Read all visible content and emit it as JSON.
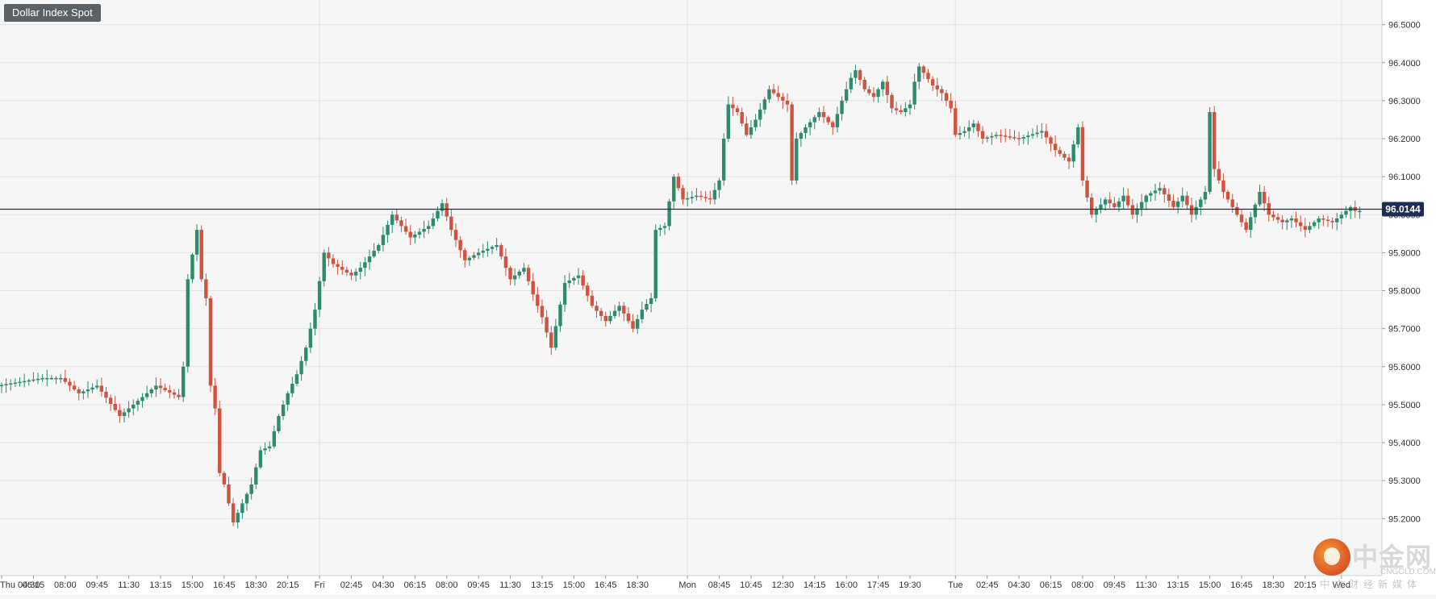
{
  "header": {
    "title": "Dollar Index Spot"
  },
  "chart_data": {
    "type": "candlestick",
    "title": "Dollar Index Spot",
    "colors": {
      "up": "#2e8b6e",
      "down": "#d0533f",
      "grid": "#e3e3e3",
      "price_line": "#1e2c55",
      "axis_text": "#333333"
    },
    "ylim": [
      95.05,
      96.565
    ],
    "y_ticks": [
      "95.2000",
      "95.3000",
      "95.4000",
      "95.5000",
      "95.6000",
      "95.7000",
      "95.8000",
      "95.9000",
      "96.0000",
      "96.1000",
      "96.2000",
      "96.3000",
      "96.4000",
      "96.5000"
    ],
    "x_ticks": [
      {
        "bar": 0,
        "label": "Thu 04:30"
      },
      {
        "bar": 7,
        "label": "06:15"
      },
      {
        "bar": 14,
        "label": "08:00"
      },
      {
        "bar": 21,
        "label": "09:45"
      },
      {
        "bar": 28,
        "label": "11:30"
      },
      {
        "bar": 35,
        "label": "13:15"
      },
      {
        "bar": 42,
        "label": "15:00"
      },
      {
        "bar": 49,
        "label": "16:45"
      },
      {
        "bar": 56,
        "label": "18:30"
      },
      {
        "bar": 63,
        "label": "20:15"
      },
      {
        "bar": 70,
        "label": "Fri"
      },
      {
        "bar": 77,
        "label": "02:45"
      },
      {
        "bar": 84,
        "label": "04:30"
      },
      {
        "bar": 91,
        "label": "06:15"
      },
      {
        "bar": 98,
        "label": "08:00"
      },
      {
        "bar": 105,
        "label": "09:45"
      },
      {
        "bar": 112,
        "label": "11:30"
      },
      {
        "bar": 119,
        "label": "13:15"
      },
      {
        "bar": 126,
        "label": "15:00"
      },
      {
        "bar": 133,
        "label": "16:45"
      },
      {
        "bar": 140,
        "label": "18:30"
      },
      {
        "bar": 151,
        "label": "Mon"
      },
      {
        "bar": 158,
        "label": "08:45"
      },
      {
        "bar": 165,
        "label": "10:45"
      },
      {
        "bar": 172,
        "label": "12:30"
      },
      {
        "bar": 179,
        "label": "14:15"
      },
      {
        "bar": 186,
        "label": "16:00"
      },
      {
        "bar": 193,
        "label": "17:45"
      },
      {
        "bar": 200,
        "label": "19:30"
      },
      {
        "bar": 210,
        "label": "Tue"
      },
      {
        "bar": 217,
        "label": "02:45"
      },
      {
        "bar": 224,
        "label": "04:30"
      },
      {
        "bar": 231,
        "label": "06:15"
      },
      {
        "bar": 238,
        "label": "08:00"
      },
      {
        "bar": 245,
        "label": "09:45"
      },
      {
        "bar": 252,
        "label": "11:30"
      },
      {
        "bar": 259,
        "label": "13:15"
      },
      {
        "bar": 266,
        "label": "15:00"
      },
      {
        "bar": 273,
        "label": "16:45"
      },
      {
        "bar": 280,
        "label": "18:30"
      },
      {
        "bar": 287,
        "label": "20:15"
      },
      {
        "bar": 295,
        "label": "Wed"
      }
    ],
    "day_separator_bars": [
      70,
      151,
      210,
      295
    ],
    "current_price": "96.0144",
    "segments": [
      [
        0,
        95.55
      ],
      [
        10,
        95.57
      ],
      [
        14,
        95.57
      ],
      [
        18,
        95.53
      ],
      [
        22,
        95.55
      ],
      [
        27,
        95.47
      ],
      [
        30,
        95.5
      ],
      [
        35,
        95.55
      ],
      [
        40,
        95.52
      ],
      [
        41,
        95.6
      ],
      [
        42,
        95.83
      ],
      [
        44,
        95.96
      ],
      [
        45,
        95.83
      ],
      [
        46,
        95.78
      ],
      [
        47,
        95.55
      ],
      [
        48,
        95.49
      ],
      [
        49,
        95.32
      ],
      [
        50,
        95.29
      ],
      [
        52,
        95.19
      ],
      [
        54,
        95.24
      ],
      [
        56,
        95.29
      ],
      [
        58,
        95.38
      ],
      [
        60,
        95.39
      ],
      [
        62,
        95.47
      ],
      [
        64,
        95.53
      ],
      [
        66,
        95.58
      ],
      [
        68,
        95.65
      ],
      [
        70,
        95.75
      ],
      [
        72,
        95.9
      ],
      [
        74,
        95.87
      ],
      [
        78,
        95.84
      ],
      [
        80,
        95.86
      ],
      [
        84,
        95.92
      ],
      [
        87,
        96.0
      ],
      [
        91,
        95.94
      ],
      [
        95,
        95.97
      ],
      [
        98,
        96.03
      ],
      [
        100,
        95.96
      ],
      [
        103,
        95.88
      ],
      [
        106,
        95.9
      ],
      [
        110,
        95.92
      ],
      [
        113,
        95.83
      ],
      [
        116,
        95.86
      ],
      [
        118,
        95.79
      ],
      [
        120,
        95.73
      ],
      [
        122,
        95.65
      ],
      [
        125,
        95.82
      ],
      [
        128,
        95.84
      ],
      [
        131,
        95.76
      ],
      [
        134,
        95.72
      ],
      [
        137,
        95.76
      ],
      [
        140,
        95.7
      ],
      [
        142,
        95.75
      ],
      [
        144,
        95.78
      ],
      [
        145,
        95.96
      ],
      [
        147,
        95.97
      ],
      [
        149,
        96.1
      ],
      [
        151,
        96.04
      ],
      [
        154,
        96.05
      ],
      [
        157,
        96.04
      ],
      [
        159,
        96.09
      ],
      [
        160,
        96.2
      ],
      [
        161,
        96.29
      ],
      [
        163,
        96.27
      ],
      [
        165,
        96.21
      ],
      [
        167,
        96.25
      ],
      [
        170,
        96.33
      ],
      [
        172,
        96.31
      ],
      [
        174,
        96.29
      ],
      [
        175,
        96.09
      ],
      [
        176,
        96.2
      ],
      [
        178,
        96.23
      ],
      [
        181,
        96.27
      ],
      [
        184,
        96.23
      ],
      [
        186,
        96.3
      ],
      [
        188,
        96.36
      ],
      [
        189,
        96.38
      ],
      [
        191,
        96.33
      ],
      [
        193,
        96.31
      ],
      [
        195,
        96.35
      ],
      [
        197,
        96.28
      ],
      [
        199,
        96.27
      ],
      [
        201,
        96.29
      ],
      [
        202,
        96.35
      ],
      [
        203,
        96.39
      ],
      [
        206,
        96.34
      ],
      [
        208,
        96.32
      ],
      [
        210,
        96.28
      ],
      [
        211,
        96.21
      ],
      [
        213,
        96.22
      ],
      [
        215,
        96.24
      ],
      [
        217,
        96.2
      ],
      [
        220,
        96.21
      ],
      [
        225,
        96.2
      ],
      [
        230,
        96.22
      ],
      [
        233,
        96.17
      ],
      [
        236,
        96.14
      ],
      [
        238,
        96.23
      ],
      [
        239,
        96.09
      ],
      [
        241,
        96.0
      ],
      [
        244,
        96.04
      ],
      [
        246,
        96.02
      ],
      [
        248,
        96.05
      ],
      [
        250,
        96.0
      ],
      [
        253,
        96.05
      ],
      [
        256,
        96.07
      ],
      [
        259,
        96.02
      ],
      [
        261,
        96.05
      ],
      [
        263,
        96.0
      ],
      [
        264,
        96.02
      ],
      [
        266,
        96.06
      ],
      [
        267,
        96.27
      ],
      [
        268,
        96.12
      ],
      [
        270,
        96.06
      ],
      [
        273,
        96.0
      ],
      [
        275,
        95.96
      ],
      [
        278,
        96.06
      ],
      [
        280,
        96.0
      ],
      [
        283,
        95.98
      ],
      [
        285,
        95.99
      ],
      [
        288,
        95.96
      ],
      [
        291,
        95.99
      ],
      [
        294,
        95.98
      ],
      [
        296,
        96.0
      ],
      [
        298,
        96.02
      ],
      [
        299,
        96.01
      ]
    ]
  }
}
